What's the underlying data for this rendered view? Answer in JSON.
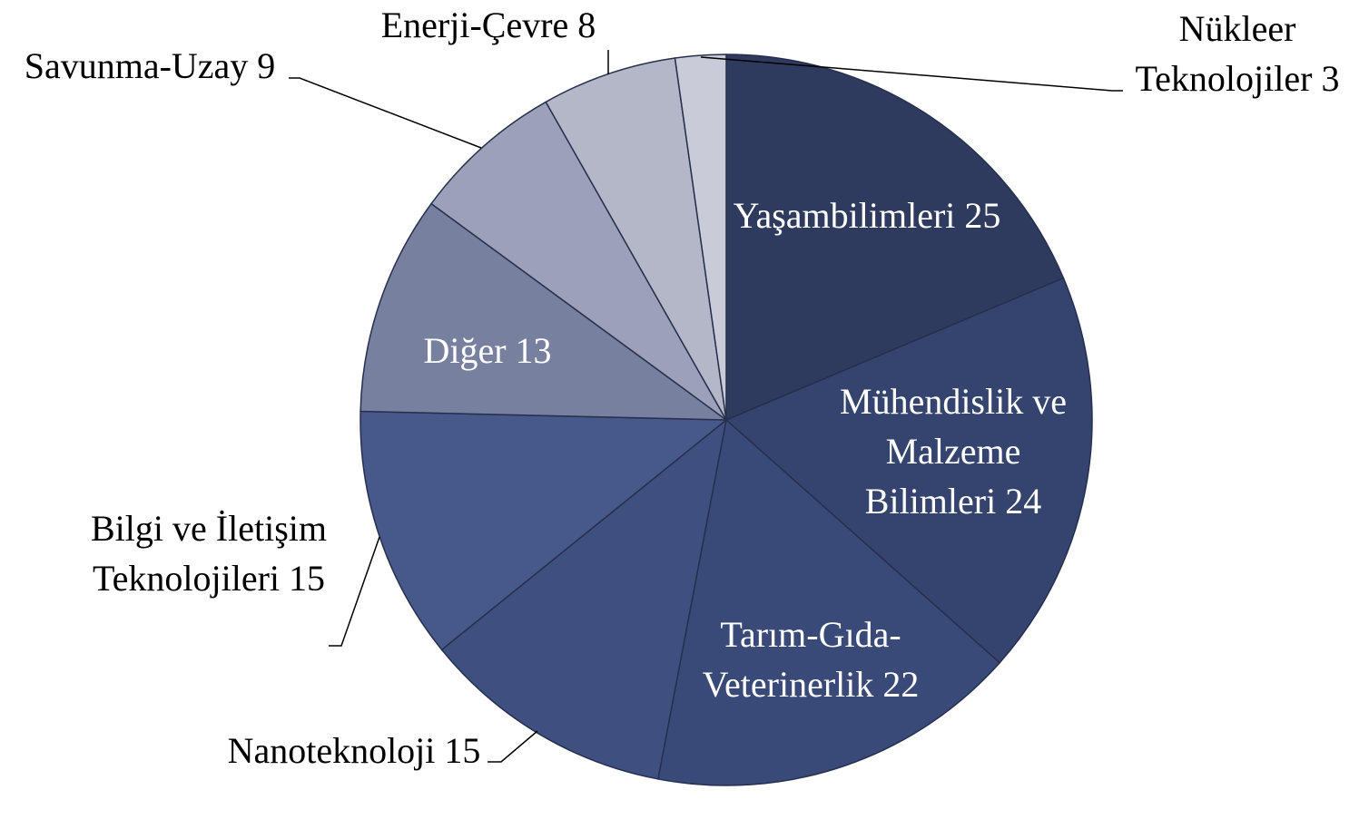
{
  "chart_data": {
    "type": "pie",
    "categories": [
      "Yaşambilimleri",
      "Mühendislik ve Malzeme Bilimleri",
      "Tarım-Gıda-Veterinerlik",
      "Nanoteknoloji",
      "Bilgi ve İletişim Teknolojileri",
      "Diğer",
      "Savunma-Uzay",
      "Enerji-Çevre",
      "Nükleer Teknolojiler"
    ],
    "values": [
      25,
      24,
      22,
      15,
      15,
      13,
      9,
      8,
      3
    ],
    "colors": [
      "#2e3a5e",
      "#34446e",
      "#3a4a78",
      "#3f5080",
      "#47598a",
      "#7880a0",
      "#9ca0b8",
      "#b3b7c8",
      "#c9ccd8"
    ]
  }
}
